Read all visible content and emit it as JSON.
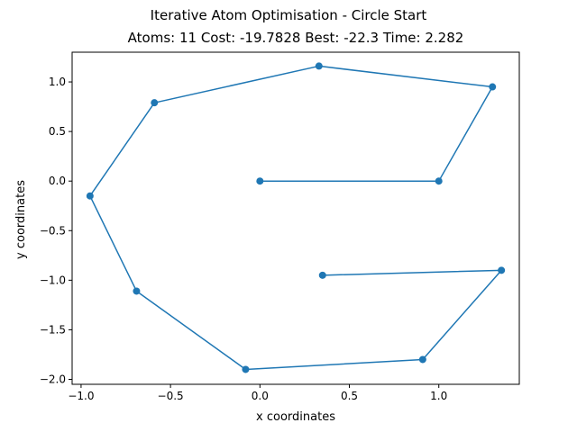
{
  "chart_data": {
    "type": "line",
    "title": "Iterative Atom Optimisation - Circle Start",
    "subtitle": "Atoms: 11 Cost: -19.7828 Best: -22.3 Time: 2.282",
    "xlabel": "x coordinates",
    "ylabel": "y coordinates",
    "xlim": [
      -1.05,
      1.45
    ],
    "ylim": [
      -2.05,
      1.3
    ],
    "xticks": [
      -1.0,
      -0.5,
      0.0,
      0.5,
      1.0
    ],
    "xtick_labels": [
      "−1.0",
      "−0.5",
      "0.0",
      "0.5",
      "1.0"
    ],
    "yticks": [
      1.0,
      0.5,
      0.0,
      -0.5,
      -1.0,
      -1.5,
      -2.0
    ],
    "ytick_labels": [
      "1.0",
      "0.5",
      "0.0",
      "−0.5",
      "−1.0",
      "−1.5",
      "−2.0"
    ],
    "grid": false,
    "color": "#1f77b4",
    "x": [
      0.0,
      1.0,
      1.3,
      0.33,
      -0.59,
      -0.95,
      -0.69,
      -0.08,
      0.91,
      1.35,
      0.35
    ],
    "y": [
      0.0,
      0.0,
      0.95,
      1.16,
      0.79,
      -0.15,
      -1.11,
      -1.9,
      -1.8,
      -0.9,
      -0.95
    ]
  }
}
